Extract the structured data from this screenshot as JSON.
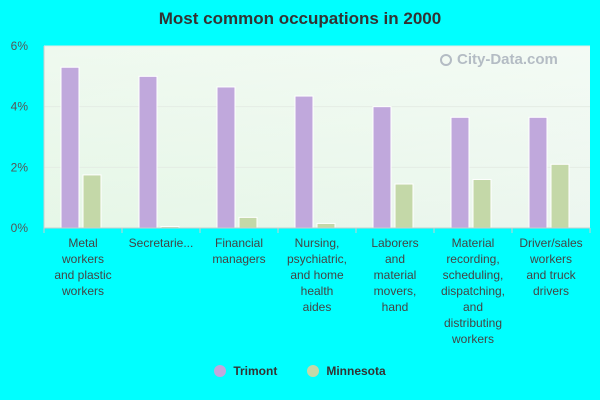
{
  "chart_data": {
    "type": "bar",
    "title": "Most common occupations in 2000",
    "categories": [
      "Metal workers and plastic workers",
      "Secretarie...",
      "Financial managers",
      "Nursing, psychiatric, and home health aides",
      "Laborers and material movers, hand",
      "Material recording, scheduling, dispatching, and distributing workers",
      "Driver/sales workers and truck drivers"
    ],
    "category_lines": [
      [
        "Metal",
        "workers",
        "and plastic",
        "workers"
      ],
      [
        "Secretarie..."
      ],
      [
        "Financial",
        "managers"
      ],
      [
        "Nursing,",
        "psychiatric,",
        "and home",
        "health",
        "aides"
      ],
      [
        "Laborers",
        "and",
        "material",
        "movers,",
        "hand"
      ],
      [
        "Material",
        "recording,",
        "scheduling,",
        "dispatching,",
        "and",
        "distributing",
        "workers"
      ],
      [
        "Driver/sales",
        "workers",
        "and truck",
        "drivers"
      ]
    ],
    "series": [
      {
        "name": "Trimont",
        "color": "#c0a8dc",
        "values": [
          5.3,
          5.0,
          4.65,
          4.35,
          4.0,
          3.65,
          3.65
        ]
      },
      {
        "name": "Minnesota",
        "color": "#c4d8a8",
        "values": [
          1.75,
          0.05,
          0.35,
          0.15,
          1.45,
          1.6,
          2.1
        ]
      }
    ],
    "ylim": [
      0,
      6
    ],
    "yticks": [
      0,
      2,
      4,
      6
    ],
    "ytick_labels": [
      "0%",
      "2%",
      "4%",
      "6%"
    ],
    "xlabel": "",
    "ylabel": "",
    "grid": true,
    "legend_position": "bottom-center"
  },
  "watermark": {
    "text": "City-Data.com",
    "icon": "magnifier-icon"
  }
}
